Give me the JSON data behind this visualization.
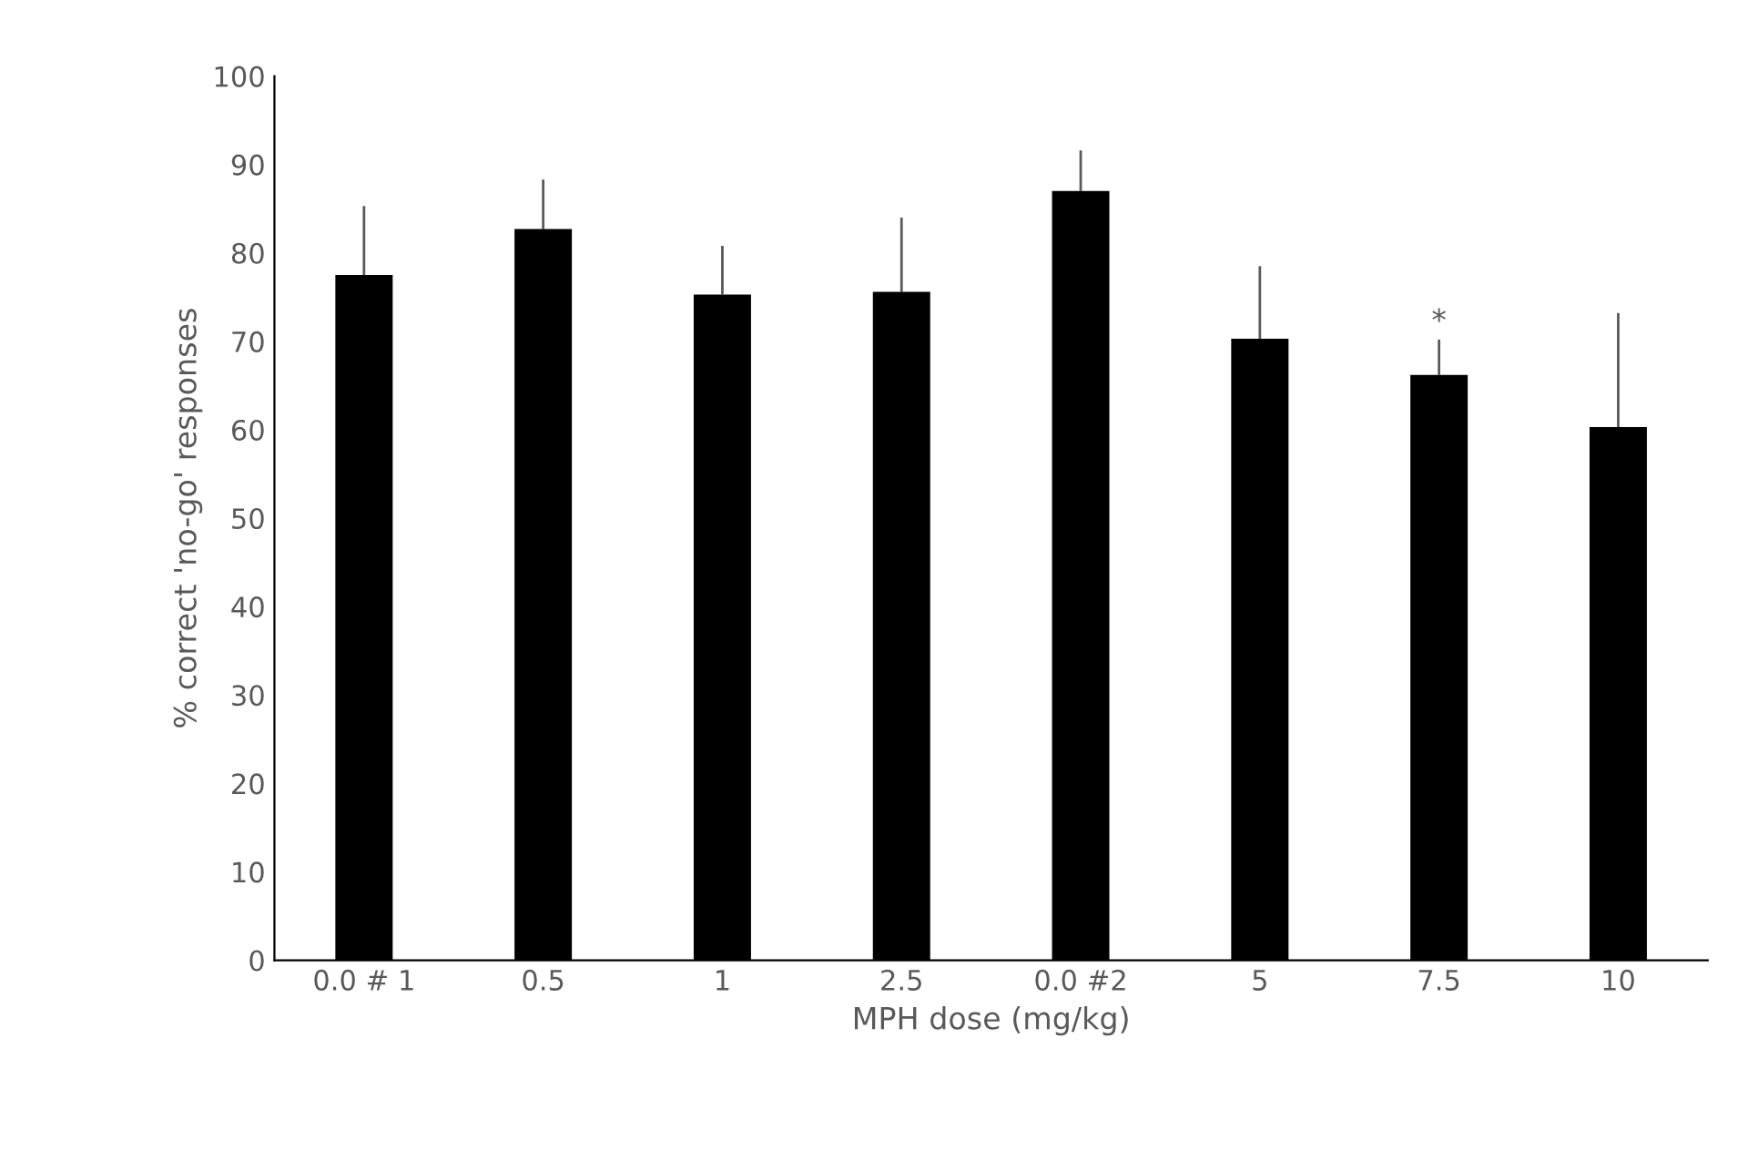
{
  "chart_data": {
    "type": "bar",
    "xlabel": "MPH dose (mg/kg)",
    "ylabel": "% correct 'no-go' responses",
    "categories": [
      "0.0 # 1",
      "0.5",
      "1",
      "2.5",
      "0.0 #2",
      "5",
      "7.5",
      "10"
    ],
    "values": [
      77.5,
      82.7,
      75.3,
      75.6,
      87,
      70.3,
      66.2,
      60.3
    ],
    "errors": [
      [
        77.5,
        85.3
      ],
      [
        82.7,
        88.3
      ],
      [
        75.3,
        80.8
      ],
      [
        75.6,
        84
      ],
      [
        87,
        91.6
      ],
      [
        70.3,
        78.5
      ],
      [
        66.2,
        70.2
      ],
      [
        60.3,
        73.2
      ]
    ],
    "color": "#000000",
    "ylim": [
      0,
      100
    ],
    "yticks": [
      0,
      10,
      20,
      30,
      40,
      50,
      60,
      70,
      80,
      90,
      100
    ],
    "grid": false,
    "legend": false,
    "annotations": [
      {
        "text": "*",
        "x": "7.5",
        "y": 70.2
      }
    ]
  }
}
